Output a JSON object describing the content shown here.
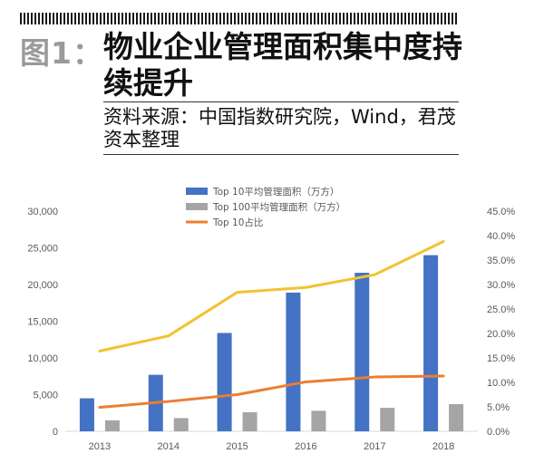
{
  "header": {
    "figure_label": "图1：",
    "title": "物业企业管理面积集中度持续提升",
    "source": "资料来源：中国指数研究院，Wind，君茂资本整理"
  },
  "chart_data": {
    "type": "bar",
    "categories": [
      "2013",
      "2014",
      "2015",
      "2016",
      "2017",
      "2018"
    ],
    "series": [
      {
        "name": "Top 10平均管理面积（万方）",
        "kind": "bar",
        "axis": "left",
        "color": "#4472C4",
        "values": [
          4500,
          7700,
          13400,
          18900,
          21600,
          24000
        ]
      },
      {
        "name": "Top 100平均管理面积（万方）",
        "kind": "bar",
        "axis": "left",
        "color": "#A5A5A5",
        "values": [
          1500,
          1800,
          2600,
          2800,
          3200,
          3700
        ]
      },
      {
        "name": "Top 10占比",
        "kind": "line",
        "axis": "right",
        "color": "#ED7D31",
        "values": [
          0.049,
          0.061,
          0.075,
          0.101,
          0.111,
          0.113
        ]
      },
      {
        "name": "",
        "kind": "line",
        "axis": "right",
        "color": "#F2C230",
        "values": [
          0.164,
          0.195,
          0.284,
          0.294,
          0.32,
          0.388
        ]
      }
    ],
    "left_axis": {
      "ylim": [
        0,
        30000
      ],
      "ticks": [
        "0",
        "5,000",
        "10,000",
        "15,000",
        "20,000",
        "25,000",
        "30,000"
      ]
    },
    "right_axis": {
      "ylim": [
        0,
        0.45
      ],
      "ticks": [
        "0.0%",
        "5.0%",
        "10.0%",
        "15.0%",
        "20.0%",
        "25.0%",
        "30.0%",
        "35.0%",
        "40.0%",
        "45.0%"
      ]
    },
    "grid": false,
    "legend_position": "top-center"
  }
}
